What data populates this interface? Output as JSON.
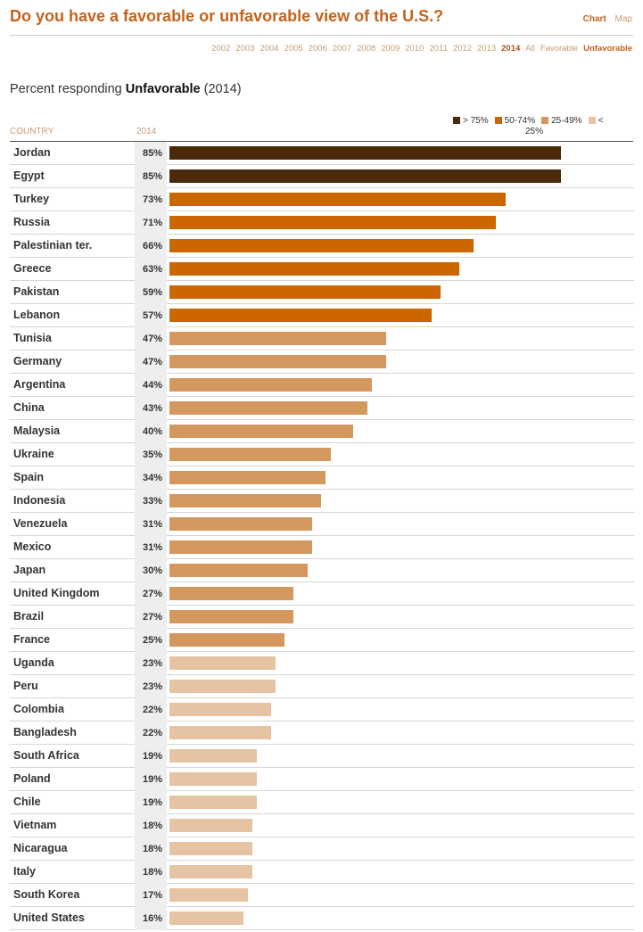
{
  "title": "Do you have a favorable or unfavorable view of the U.S.?",
  "view_toggle": [
    {
      "label": "Chart",
      "active": true
    },
    {
      "label": "Map",
      "active": false
    }
  ],
  "years": [
    "2002",
    "2003",
    "2004",
    "2005",
    "2006",
    "2007",
    "2008",
    "2009",
    "2010",
    "2011",
    "2012",
    "2013",
    "2014"
  ],
  "selected_year": "2014",
  "modes": [
    "All",
    "Favorable",
    "Unfavorable"
  ],
  "selected_mode": "Unfavorable",
  "subtitle": {
    "prefix": "Percent responding ",
    "bold": "Unfavorable",
    "suffix": " (2014)"
  },
  "column_headers": {
    "country": "COUNTRY",
    "year": "2014"
  },
  "legend": [
    {
      "label": "> 75%",
      "color": "#4a2a0a"
    },
    {
      "label": "50-74%",
      "color": "#cc6600"
    },
    {
      "label": "25-49%",
      "color": "#d4975e"
    },
    {
      "label": "< 25%",
      "color": "#e6c3a2"
    }
  ],
  "chart_data": {
    "type": "bar",
    "orientation": "horizontal",
    "xlim": [
      0,
      100
    ],
    "categories": [
      "Jordan",
      "Egypt",
      "Turkey",
      "Russia",
      "Palestinian ter.",
      "Greece",
      "Pakistan",
      "Lebanon",
      "Tunisia",
      "Germany",
      "Argentina",
      "China",
      "Malaysia",
      "Ukraine",
      "Spain",
      "Indonesia",
      "Venezuela",
      "Mexico",
      "Japan",
      "United Kingdom",
      "Brazil",
      "France",
      "Uganda",
      "Peru",
      "Colombia",
      "Bangladesh",
      "South Africa",
      "Poland",
      "Chile",
      "Vietnam",
      "Nicaragua",
      "Italy",
      "South Korea",
      "United States"
    ],
    "values": [
      85,
      85,
      73,
      71,
      66,
      63,
      59,
      57,
      47,
      47,
      44,
      43,
      40,
      35,
      34,
      33,
      31,
      31,
      30,
      27,
      27,
      25,
      23,
      23,
      22,
      22,
      19,
      19,
      19,
      18,
      18,
      18,
      17,
      16
    ],
    "value_suffix": "%",
    "legend_placement": "top-right"
  }
}
